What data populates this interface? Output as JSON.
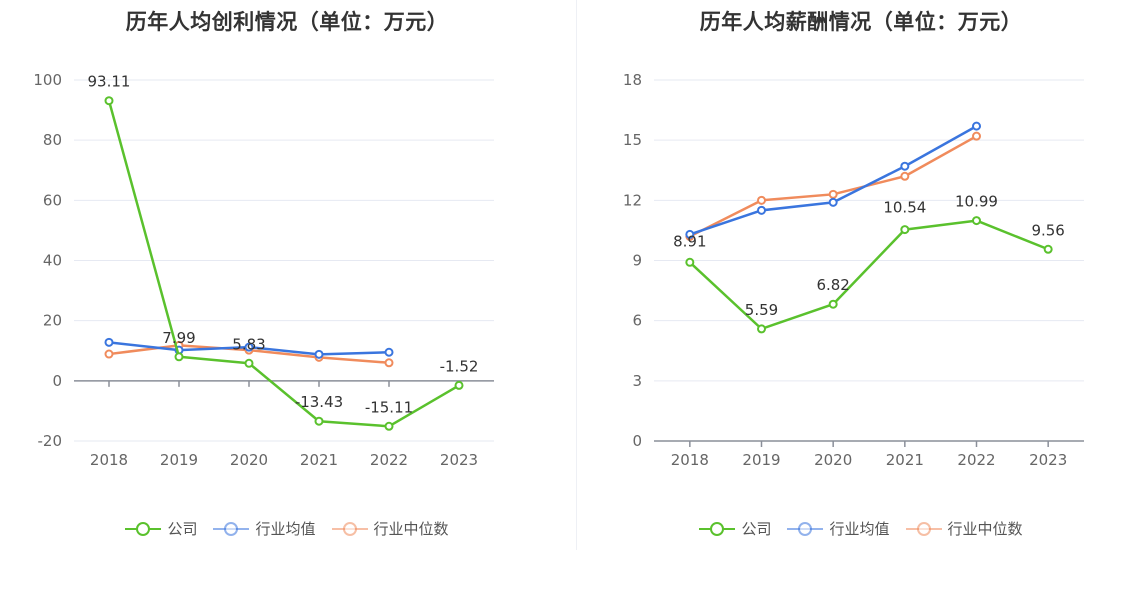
{
  "chart_data": [
    {
      "type": "line",
      "title": "历年人均创利情况（单位：万元）",
      "categories": [
        "2018",
        "2019",
        "2020",
        "2021",
        "2022",
        "2023"
      ],
      "ylim": [
        -20,
        100
      ],
      "yticks": [
        -20,
        0,
        20,
        40,
        60,
        80,
        100
      ],
      "grid": true,
      "legend_position": "bottom-center",
      "series": [
        {
          "name": "公司",
          "color": "#5ac12d",
          "values": [
            93.11,
            7.99,
            5.83,
            -13.43,
            -15.11,
            -1.52
          ],
          "show_labels": true,
          "labels": [
            "93.11",
            "7.99",
            "5.83",
            "-13.43",
            "-15.11",
            "-1.52"
          ]
        },
        {
          "name": "行业均值",
          "color": "#3a75de",
          "values": [
            12.8,
            10.2,
            11.2,
            8.8,
            9.5,
            null
          ],
          "show_labels": false
        },
        {
          "name": "行业中位数",
          "color": "#f08b5c",
          "values": [
            8.9,
            11.8,
            10.2,
            7.8,
            6.0,
            null
          ],
          "show_labels": false
        }
      ]
    },
    {
      "type": "line",
      "title": "历年人均薪酬情况（单位：万元）",
      "categories": [
        "2018",
        "2019",
        "2020",
        "2021",
        "2022",
        "2023"
      ],
      "ylim": [
        0,
        18
      ],
      "yticks": [
        0,
        3,
        6,
        9,
        12,
        15,
        18
      ],
      "grid": true,
      "legend_position": "bottom-center",
      "series": [
        {
          "name": "公司",
          "color": "#5ac12d",
          "values": [
            8.91,
            5.59,
            6.82,
            10.54,
            10.99,
            9.56
          ],
          "show_labels": true,
          "labels": [
            "8.91",
            "5.59",
            "6.82",
            "10.54",
            "10.99",
            "9.56"
          ]
        },
        {
          "name": "行业均值",
          "color": "#3a75de",
          "values": [
            10.3,
            11.5,
            11.9,
            13.7,
            15.7,
            null
          ],
          "show_labels": false
        },
        {
          "name": "行业中位数",
          "color": "#f08b5c",
          "values": [
            10.2,
            12.0,
            12.3,
            13.2,
            15.2,
            null
          ],
          "show_labels": false
        }
      ]
    }
  ]
}
